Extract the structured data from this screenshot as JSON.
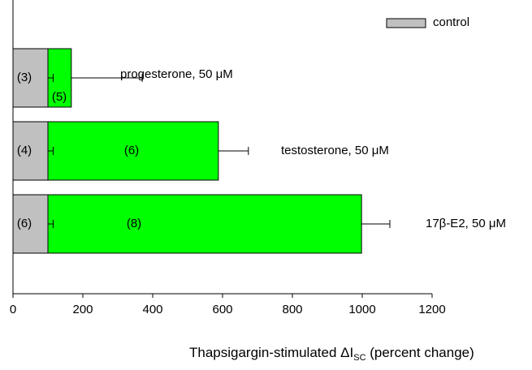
{
  "chart_data": {
    "type": "hbar",
    "categories": [
      "progesterone, 50 μM",
      "testosterone, 50 μM",
      "17β-E2, 50 μM"
    ],
    "series": [
      {
        "color": "#00ff00",
        "values": [
          167,
          588,
          998
        ],
        "errors": [
          203,
          86,
          81
        ],
        "n_labels": [
          "(5)",
          "(6)",
          "(8)"
        ]
      },
      {
        "name": "control",
        "color": "#c0c0c0",
        "values": [
          100,
          100,
          100
        ],
        "errors": [
          15,
          15,
          15
        ],
        "n_labels": [
          "(3)",
          "(4)",
          "(6)"
        ]
      }
    ],
    "xlim": [
      0,
      1200
    ],
    "xticks": [
      0,
      200,
      400,
      600,
      800,
      1000,
      1200
    ],
    "x_label_parts": [
      "Thapsigargin-stimulated ΔI",
      "SC",
      " (percent change)"
    ],
    "legend": "upper right"
  }
}
